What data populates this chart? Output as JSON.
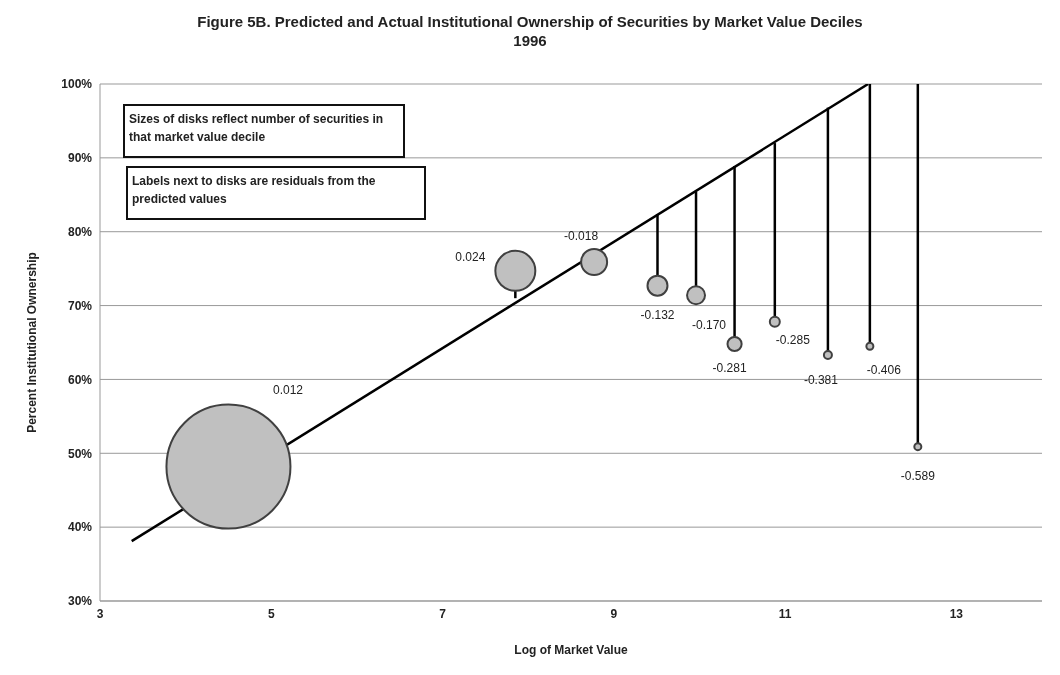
{
  "chart_data": {
    "type": "bubble",
    "title": "Figure 5B. Predicted and Actual Institutional Ownership of Securities by Market Value Deciles\n1996",
    "xlabel": "Log of Market Value",
    "ylabel": "Percent Institutional Ownership",
    "xlim": [
      3,
      14
    ],
    "xticks": [
      3,
      5,
      7,
      9,
      11,
      13
    ],
    "ylim": [
      30,
      100
    ],
    "yticks": [
      {
        "value": 30,
        "label": "30%"
      },
      {
        "value": 40,
        "label": "40%"
      },
      {
        "value": 50,
        "label": "50%"
      },
      {
        "value": 60,
        "label": "60%"
      },
      {
        "value": 70,
        "label": "70%"
      },
      {
        "value": 80,
        "label": "80%"
      },
      {
        "value": 90,
        "label": "90%"
      },
      {
        "value": 100,
        "label": "100%"
      }
    ],
    "grid": "y",
    "legend": false,
    "annotations": [
      "Sizes of disks reflect number of securities in that market value decile",
      "Labels next to disks are residuals from the predicted values",
      "0.012",
      {
        "text": "0.024",
        "x": 7.85,
        "y": 74.7
      },
      {
        "text": "-0.018",
        "x": 8.77,
        "y": 75.9
      },
      {
        "text": "-0.132",
        "x": 9.51,
        "y": 72.7
      },
      {
        "text": "-0.170",
        "x": 9.96,
        "y": 71.4
      },
      {
        "text": "-0.281",
        "x": 10.41,
        "y": 64.8
      },
      {
        "text": "-0.285",
        "x": 10.88,
        "y": 67.8
      },
      {
        "text": "-0.381",
        "x": 11.5,
        "y": 63.3
      },
      {
        "text": "-0.406",
        "x": 11.99,
        "y": 64.5
      },
      {
        "text": "-0.589",
        "x": 12.55,
        "y": 50.9
      }
    ],
    "series": [
      {
        "type": "line",
        "x": [
          3.37,
          11.97
        ],
        "values": [
          38.1,
          100
        ],
        "color": "#000000"
      },
      {
        "type": "bubble",
        "color": "#c0c0c0",
        "x": [
          4.5,
          7.85,
          8.77,
          9.51,
          9.96,
          10.41,
          10.88,
          11.5,
          11.99,
          12.55
        ],
        "values": [
          48.2,
          74.7,
          75.9,
          72.7,
          71.4,
          64.8,
          67.8,
          63.3,
          64.5,
          50.9
        ],
        "sizes": [
          1,
          0.104,
          0.044,
          0.026,
          0.021,
          0.013,
          0.0065,
          0.0042,
          0.0032,
          0.0032
        ],
        "errors": [
          null,
          [
            71.0,
            74.7
          ],
          null,
          [
            72.7,
            82.4
          ],
          [
            71.4,
            85.4
          ],
          [
            64.8,
            88.9
          ],
          [
            67.8,
            92.0
          ],
          [
            63.3,
            96.8
          ],
          [
            64.5,
            100
          ],
          [
            50.9,
            100
          ]
        ]
      }
    ]
  }
}
